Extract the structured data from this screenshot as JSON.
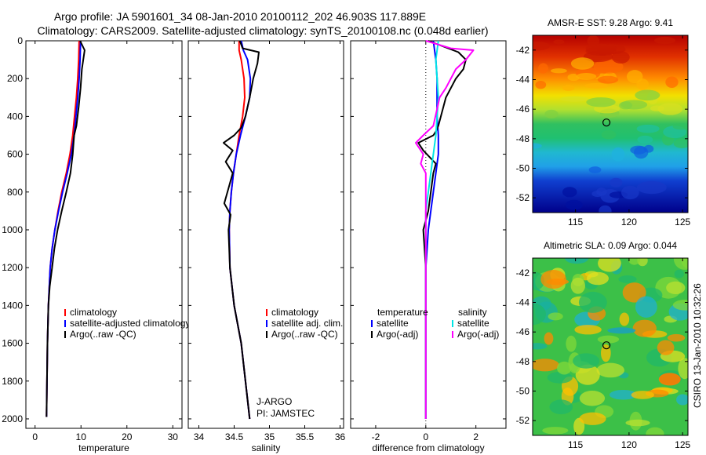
{
  "header": {
    "line1": "Argo profile: JA 5901601_34 08-Jan-2010 20100112_202 46.903S 117.889E",
    "line2": "Climatology: CARS2009. Satellite-adjusted climatology: synTS_20100108.nc (0.048d earlier)"
  },
  "credit": {
    "text": "CSIRO 13-Jan-2010 10:32:26",
    "platform": "J-ARGO",
    "pi": "PI: JAMSTEC"
  },
  "colors": {
    "climatology": "#ff0000",
    "satellite": "#0000ff",
    "argo": "#000000",
    "satellite_diff_salinity": "#00e5e5",
    "argo_diff_salinity": "#ff00ff"
  },
  "chart_data": [
    {
      "type": "line",
      "id": "temperature",
      "xlabel": "temperature",
      "ylabel": "",
      "xlim": [
        -2,
        32
      ],
      "ylim": [
        2050,
        0
      ],
      "xticks": [
        0,
        10,
        20,
        30
      ],
      "yticks": [
        0,
        200,
        400,
        600,
        800,
        1000,
        1200,
        1400,
        1600,
        1800,
        2000
      ],
      "legend": [
        "climatology",
        "satellite-adjusted climatology",
        "Argo(..raw -QC)"
      ],
      "series": [
        {
          "name": "climatology",
          "color": "#ff0000",
          "x": [
            9.6,
            9.5,
            9.3,
            9.0,
            8.6,
            8.2,
            7.6,
            6.8,
            5.8,
            5.0,
            4.3,
            3.7,
            3.3,
            2.9,
            2.7,
            2.5
          ],
          "y": [
            0,
            100,
            200,
            300,
            400,
            500,
            600,
            700,
            800,
            900,
            1000,
            1100,
            1200,
            1400,
            1600,
            1990
          ]
        },
        {
          "name": "satellite-adjusted climatology",
          "color": "#0000ff",
          "x": [
            9.9,
            9.8,
            9.6,
            9.3,
            8.9,
            8.5,
            7.9,
            7.0,
            6.0,
            5.1,
            4.3,
            3.7,
            3.3,
            2.9,
            2.7,
            2.5
          ],
          "y": [
            0,
            100,
            200,
            300,
            400,
            500,
            600,
            700,
            800,
            900,
            1000,
            1100,
            1200,
            1400,
            1600,
            1990
          ]
        },
        {
          "name": "Argo(..raw -QC)",
          "color": "#000000",
          "x": [
            9.8,
            10.8,
            10.2,
            9.9,
            9.5,
            9.0,
            8.5,
            8.2,
            7.7,
            6.8,
            5.8,
            4.9,
            4.2,
            3.7,
            3.2,
            2.9,
            2.7,
            2.5
          ],
          "y": [
            0,
            50,
            150,
            250,
            350,
            450,
            500,
            600,
            700,
            800,
            900,
            1000,
            1100,
            1200,
            1300,
            1400,
            1600,
            1990
          ]
        }
      ]
    },
    {
      "type": "line",
      "id": "salinity",
      "xlabel": "salinity",
      "ylabel": "",
      "xlim": [
        33.85,
        36.05
      ],
      "ylim": [
        2050,
        0
      ],
      "xticks": [
        34,
        34.5,
        35,
        35.5,
        36
      ],
      "xticklabels": [
        "34",
        "34.5",
        "35",
        "35.5",
        "36"
      ],
      "yticks": [
        0,
        200,
        400,
        600,
        800,
        1000,
        1200,
        1400,
        1600,
        1800,
        2000
      ],
      "legend": [
        "climatology",
        "satellite adj. clim.",
        "Argo(..raw -QC)"
      ],
      "series": [
        {
          "name": "climatology",
          "color": "#ff0000",
          "x": [
            34.57,
            34.57,
            34.6,
            34.64,
            34.65,
            34.62,
            34.57,
            34.53,
            34.49,
            34.46,
            34.44,
            34.43,
            34.44,
            34.5,
            34.6,
            34.72
          ],
          "y": [
            0,
            50,
            100,
            200,
            300,
            400,
            500,
            600,
            700,
            800,
            900,
            1000,
            1200,
            1400,
            1600,
            2000
          ]
        },
        {
          "name": "satellite adj. clim.",
          "color": "#0000ff",
          "x": [
            34.6,
            34.63,
            34.69,
            34.73,
            34.72,
            34.66,
            34.59,
            34.53,
            34.49,
            34.46,
            34.44,
            34.43,
            34.44,
            34.5,
            34.6,
            34.72
          ],
          "y": [
            0,
            50,
            100,
            200,
            300,
            400,
            500,
            600,
            700,
            800,
            900,
            1000,
            1200,
            1400,
            1600,
            2000
          ]
        },
        {
          "name": "Argo(..raw -QC)",
          "color": "#000000",
          "x": [
            34.58,
            34.62,
            34.85,
            34.83,
            34.77,
            34.72,
            34.66,
            34.6,
            34.5,
            34.35,
            34.48,
            34.38,
            34.48,
            34.42,
            34.36,
            34.45,
            34.42,
            34.44,
            34.5,
            34.6,
            34.72
          ],
          "y": [
            0,
            40,
            60,
            120,
            200,
            300,
            400,
            460,
            500,
            540,
            580,
            640,
            700,
            780,
            860,
            920,
            1000,
            1200,
            1400,
            1600,
            2000
          ]
        }
      ]
    },
    {
      "type": "line",
      "id": "difference",
      "xlabel": "difference from climatology",
      "ylabel": "",
      "xlim": [
        -3,
        3.2
      ],
      "ylim": [
        2050,
        0
      ],
      "xticks": [
        -2,
        0,
        2
      ],
      "yticks": [
        0,
        200,
        400,
        600,
        800,
        1000,
        1200,
        1400,
        1600,
        1800,
        2000
      ],
      "legend_temperature": [
        "temperature",
        "satellite",
        "Argo(-adj)"
      ],
      "legend_salinity": [
        "salinity",
        "satellite",
        "Argo(-adj)"
      ],
      "series": [
        {
          "name": "temperature satellite",
          "color": "#0000ff",
          "x": [
            0.3,
            0.4,
            0.45,
            0.45,
            0.45,
            0.5,
            0.5,
            0.4,
            0.3,
            0.2,
            0.1,
            0.05,
            0.0,
            0.0,
            0.0
          ],
          "y": [
            0,
            100,
            200,
            300,
            400,
            500,
            600,
            700,
            800,
            900,
            1000,
            1100,
            1200,
            1600,
            2000
          ]
        },
        {
          "name": "temperature Argo(-adj)",
          "color": "#000000",
          "x": [
            0.1,
            1.3,
            1.6,
            1.5,
            1.2,
            0.8,
            0.6,
            0.5,
            0.4,
            0.3,
            -0.3,
            -0.1,
            0.4,
            0.3,
            0.2,
            0.1,
            -0.1,
            0.0,
            0.0,
            0.0
          ],
          "y": [
            0,
            60,
            100,
            150,
            200,
            300,
            400,
            450,
            480,
            500,
            540,
            580,
            650,
            700,
            800,
            900,
            1000,
            1200,
            1600,
            2000
          ]
        },
        {
          "name": "salinity satellite",
          "color": "#00e5e5",
          "x": [
            0.5,
            0.4,
            0.45,
            0.5,
            0.45,
            0.4,
            0.3,
            0.2,
            0.1,
            0.0,
            0.0,
            0.0
          ],
          "y": [
            0,
            100,
            200,
            300,
            400,
            500,
            600,
            700,
            800,
            900,
            1200,
            2000
          ]
        },
        {
          "name": "salinity Argo(-adj)",
          "color": "#ff00ff",
          "x": [
            0.0,
            1.0,
            1.9,
            1.6,
            1.2,
            0.8,
            0.55,
            0.45,
            0.3,
            -0.1,
            -0.4,
            -0.1,
            -0.2,
            0.0,
            0.0,
            0.0,
            0.0
          ],
          "y": [
            0,
            40,
            50,
            100,
            150,
            250,
            300,
            360,
            450,
            500,
            540,
            600,
            650,
            700,
            800,
            1200,
            2000
          ]
        }
      ]
    },
    {
      "type": "heatmap",
      "id": "sst",
      "title": "AMSR-E SST: 9.28 Argo: 9.41",
      "xlim": [
        111,
        125.5
      ],
      "ylim": [
        -53,
        -41
      ],
      "xticks": [
        115,
        120,
        125
      ],
      "yticks": [
        -42,
        -44,
        -46,
        -48,
        -50,
        -52
      ],
      "marker": {
        "lon": 117.889,
        "lat": -46.903
      }
    },
    {
      "type": "heatmap",
      "id": "sla",
      "title": "Altimetric SLA: 0.09 Argo: 0.044",
      "xlim": [
        111,
        125.5
      ],
      "ylim": [
        -53,
        -41
      ],
      "xticks": [
        115,
        120,
        125
      ],
      "yticks": [
        -42,
        -44,
        -46,
        -48,
        -50,
        -52
      ],
      "marker": {
        "lon": 117.889,
        "lat": -46.903
      }
    }
  ]
}
